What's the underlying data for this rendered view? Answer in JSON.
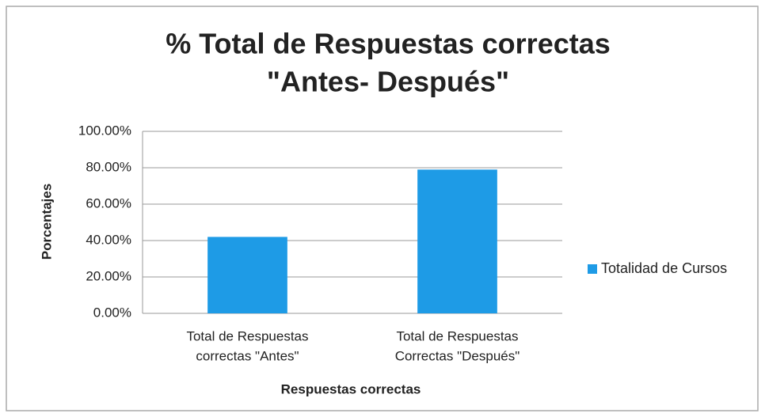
{
  "chart_data": {
    "type": "bar",
    "title": [
      "% Total de Respuestas correctas",
      "\"Antes- Después\""
    ],
    "x_label": "Respuestas correctas",
    "y_label": "Porcentajes",
    "categories": [
      [
        "Total de Respuestas",
        "correctas \"Antes\""
      ],
      [
        "Total de Respuestas",
        "Correctas \"Después\""
      ]
    ],
    "series": [
      {
        "name": "Totalidad de Cursos",
        "color": "#1e9be6",
        "values": [
          42,
          79
        ]
      }
    ],
    "ylim": [
      0,
      100
    ],
    "yticks": [
      {
        "value": 0,
        "label": "0.00%"
      },
      {
        "value": 20,
        "label": "20.00%"
      },
      {
        "value": 40,
        "label": "40.00%"
      },
      {
        "value": 60,
        "label": "60.00%"
      },
      {
        "value": 80,
        "label": "80.00%"
      },
      {
        "value": 100,
        "label": "100.00%"
      }
    ],
    "grid": true,
    "legend": "right"
  }
}
